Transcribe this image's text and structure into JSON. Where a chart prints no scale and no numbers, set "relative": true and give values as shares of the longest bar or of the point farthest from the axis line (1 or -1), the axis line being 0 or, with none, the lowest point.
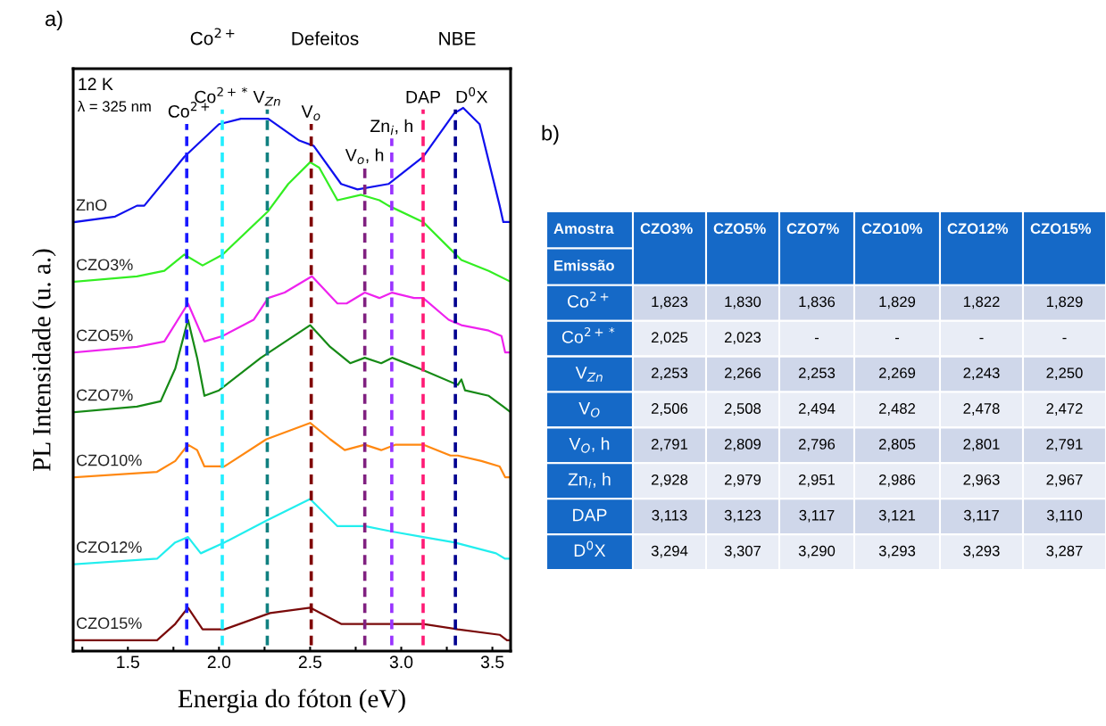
{
  "chart_data": [
    {
      "type": "line",
      "title": "a)",
      "xlabel": "Energia do fóton (eV)",
      "ylabel": "PL Intensidade (u. a.)",
      "relative": true,
      "legend": false,
      "grid": false,
      "xlim": [
        1.2,
        3.6
      ],
      "xticks": [
        {
          "value": 1.25,
          "label": null
        },
        1.5,
        {
          "value": 1.75,
          "label": null
        },
        {
          "value": 2.0,
          "label": "2.0"
        },
        {
          "value": 2.25,
          "label": null
        },
        2.5,
        {
          "value": 2.75,
          "label": null
        },
        {
          "value": 3.0,
          "label": "3.0"
        },
        {
          "value": 3.25,
          "label": null
        },
        3.5
      ],
      "annotations": [
        "12 K",
        "λ = 325 nm",
        "Co$^{2+}$",
        "Defeitos",
        "NBE"
      ],
      "ref_lines": [
        {
          "axis": "x",
          "value": 1.823,
          "label": "Co$^{2+}$",
          "color": "#1a1aff",
          "line_style": "dashed"
        },
        {
          "axis": "x",
          "value": 2.018,
          "label": "Co$^{2+*}$",
          "color": "#22eeff",
          "line_style": "dashed"
        },
        {
          "axis": "x",
          "value": 2.265,
          "label": "V$_{Zn}$",
          "color": "#108080",
          "line_style": "dashed"
        },
        {
          "axis": "x",
          "value": 2.506,
          "label": "V$_{o}$",
          "color": "#800000",
          "line_style": "dashed"
        },
        {
          "axis": "x",
          "value": 2.8,
          "label": "V$_{o}$, h",
          "color": "#802080",
          "line_style": "dashed"
        },
        {
          "axis": "x",
          "value": 2.948,
          "label": "Zn$_{i}$, h",
          "color": "#9933ff",
          "line_style": "dashed"
        },
        {
          "axis": "x",
          "value": 3.12,
          "label": "DAP",
          "color": "#ff1a75",
          "line_style": "dashed"
        },
        {
          "axis": "x",
          "value": 3.297,
          "label": "D$^{0}$X",
          "color": "#000090",
          "line_style": "dashed"
        }
      ],
      "series": [
        {
          "name": "ZnO",
          "color": "#1010ee",
          "x": [
            1.21,
            1.43,
            1.55,
            1.59,
            1.81,
            2.0,
            2.12,
            2.27,
            2.44,
            2.52,
            2.67,
            2.76,
            2.93,
            3.12,
            3.29,
            3.34,
            3.43,
            3.54,
            3.56,
            3.6
          ],
          "values": [
            0.79,
            0.8,
            0.82,
            0.82,
            0.91,
            0.97,
            0.98,
            0.98,
            0.94,
            0.93,
            0.86,
            0.85,
            0.86,
            0.91,
            0.99,
            1.0,
            0.97,
            0.82,
            0.79,
            0.79
          ]
        },
        {
          "name": "CZO3%",
          "color": "#33ee22",
          "x": [
            1.21,
            1.55,
            1.7,
            1.81,
            1.91,
            2.02,
            2.27,
            2.38,
            2.5,
            2.55,
            2.65,
            2.78,
            2.88,
            2.93,
            3.12,
            3.27,
            3.33,
            3.48,
            3.6
          ],
          "values": [
            0.68,
            0.69,
            0.7,
            0.73,
            0.71,
            0.73,
            0.81,
            0.86,
            0.9,
            0.89,
            0.83,
            0.84,
            0.83,
            0.82,
            0.79,
            0.74,
            0.72,
            0.7,
            0.68
          ]
        },
        {
          "name": "CZO5%",
          "color": "#ee22ee",
          "x": [
            1.21,
            1.55,
            1.7,
            1.83,
            1.92,
            2.02,
            2.19,
            2.27,
            2.36,
            2.51,
            2.65,
            2.7,
            2.8,
            2.88,
            2.95,
            3.07,
            3.12,
            3.26,
            3.33,
            3.48,
            3.55,
            3.57,
            3.6
          ],
          "values": [
            0.55,
            0.56,
            0.57,
            0.64,
            0.57,
            0.58,
            0.61,
            0.65,
            0.66,
            0.69,
            0.64,
            0.64,
            0.66,
            0.65,
            0.66,
            0.65,
            0.65,
            0.61,
            0.6,
            0.59,
            0.58,
            0.55,
            0.55
          ]
        },
        {
          "name": "CZO7%",
          "color": "#168a16",
          "x": [
            1.21,
            1.55,
            1.68,
            1.76,
            1.83,
            1.88,
            1.92,
            2.0,
            2.23,
            2.5,
            2.61,
            2.72,
            2.8,
            2.89,
            2.95,
            3.1,
            3.31,
            3.33,
            3.35,
            3.48,
            3.56,
            3.6
          ],
          "values": [
            0.44,
            0.45,
            0.46,
            0.52,
            0.61,
            0.54,
            0.47,
            0.48,
            0.54,
            0.6,
            0.56,
            0.53,
            0.54,
            0.53,
            0.54,
            0.52,
            0.49,
            0.5,
            0.48,
            0.47,
            0.45,
            0.44
          ]
        },
        {
          "name": "CZO10%",
          "color": "#ff8811",
          "x": [
            1.21,
            1.66,
            1.76,
            1.83,
            1.88,
            1.92,
            2.03,
            2.26,
            2.5,
            2.61,
            2.69,
            2.8,
            2.89,
            2.97,
            3.12,
            3.27,
            3.31,
            3.44,
            3.54,
            3.57,
            3.6
          ],
          "values": [
            0.32,
            0.33,
            0.35,
            0.38,
            0.37,
            0.34,
            0.34,
            0.39,
            0.42,
            0.39,
            0.37,
            0.38,
            0.37,
            0.38,
            0.38,
            0.36,
            0.36,
            0.35,
            0.34,
            0.32,
            0.32
          ]
        },
        {
          "name": "CZO12%",
          "color": "#22eeee",
          "x": [
            1.21,
            1.66,
            1.76,
            1.83,
            1.9,
            2.03,
            2.26,
            2.5,
            2.65,
            2.8,
            2.95,
            3.12,
            3.29,
            3.52,
            3.57,
            3.6
          ],
          "values": [
            0.16,
            0.17,
            0.2,
            0.21,
            0.18,
            0.2,
            0.24,
            0.28,
            0.23,
            0.23,
            0.22,
            0.21,
            0.2,
            0.18,
            0.17,
            0.17
          ]
        },
        {
          "name": "CZO15%",
          "color": "#7a0a0a",
          "x": [
            1.21,
            1.66,
            1.76,
            1.83,
            1.91,
            2.03,
            2.28,
            2.5,
            2.67,
            2.8,
            2.97,
            3.12,
            3.31,
            3.54,
            3.58,
            3.6
          ],
          "values": [
            0.02,
            0.02,
            0.05,
            0.08,
            0.04,
            0.04,
            0.07,
            0.08,
            0.05,
            0.05,
            0.05,
            0.05,
            0.04,
            0.03,
            0.02,
            0.02
          ]
        }
      ]
    },
    {
      "type": "other",
      "title": "b)",
      "xlabel": "Amostra",
      "ylabel": "Emissão",
      "categories": [
        "CZO3%",
        "CZO5%",
        "CZO7%",
        "CZO10%",
        "CZO12%",
        "CZO15%"
      ],
      "y_categories": [
        "Co$^{2+}$",
        "Co$^{2+*}$",
        "V$_{Zn}$",
        "V$_{O}$",
        "V$_{O}$, h",
        "Zn$_{i}$, h",
        "DAP",
        "D$^{0}$X"
      ],
      "cell_labels": [
        [
          "1,823",
          "1,830",
          "1,836",
          "1,829",
          "1,822",
          "1,829"
        ],
        [
          "2,025",
          "2,023",
          "-",
          "-",
          "-",
          "-"
        ],
        [
          "2,253",
          "2,266",
          "2,253",
          "2,269",
          "2,243",
          "2,250"
        ],
        [
          "2,506",
          "2,508",
          "2,494",
          "2,482",
          "2,478",
          "2,472"
        ],
        [
          "2,791",
          "2,809",
          "2,796",
          "2,805",
          "2,801",
          "2,791"
        ],
        [
          "2,928",
          "2,979",
          "2,951",
          "2,986",
          "2,963",
          "2,967"
        ],
        [
          "3,113",
          "3,123",
          "3,117",
          "3,121",
          "3,117",
          "3,110"
        ],
        [
          "3,294",
          "3,307",
          "3,290",
          "3,293",
          "3,293",
          "3,287"
        ]
      ]
    }
  ]
}
